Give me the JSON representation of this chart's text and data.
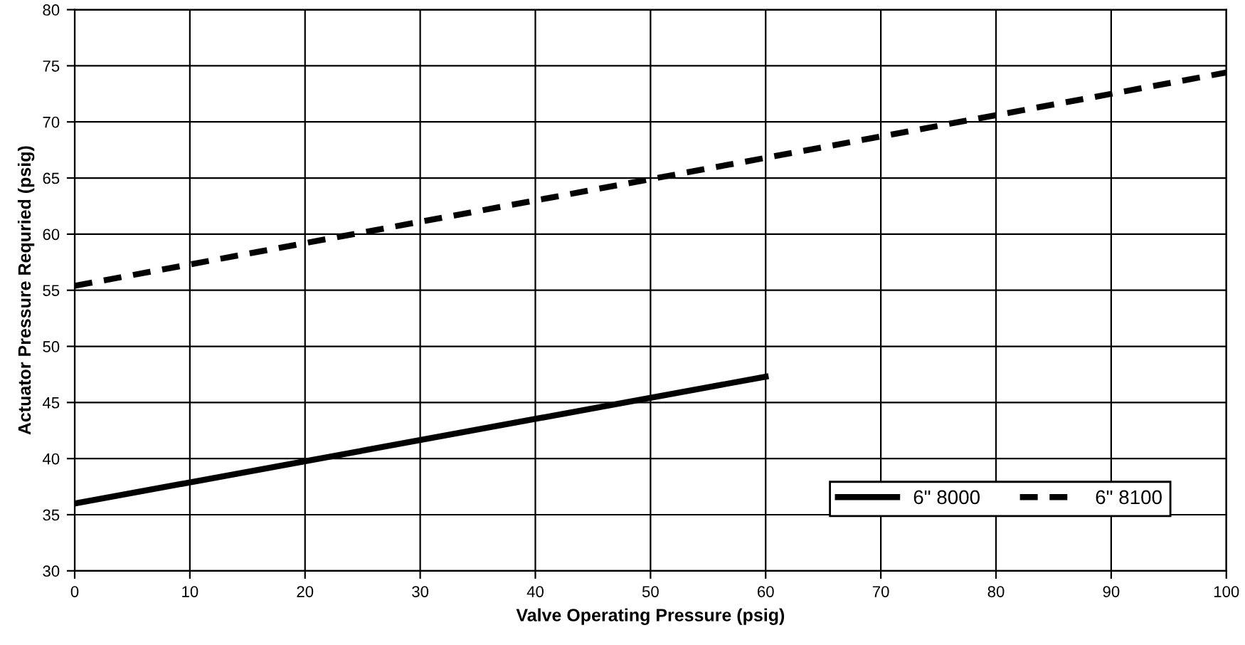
{
  "chart_data": {
    "type": "line",
    "xlabel": "Valve Operating Pressure (psig)",
    "ylabel": "Actuator Pressure Requried (psig)",
    "xlim": [
      0,
      100
    ],
    "xticks": [
      0,
      10,
      20,
      30,
      40,
      50,
      60,
      70,
      80,
      90,
      100
    ],
    "ylim": [
      30,
      80
    ],
    "yticks": [
      30,
      35,
      40,
      45,
      50,
      55,
      60,
      65,
      70,
      75,
      80
    ],
    "grid": true,
    "legend": "bottom right",
    "marker": "none",
    "series": [
      {
        "name": "6\" 8000",
        "color": "#000000",
        "line_style": "solid",
        "x": [
          0,
          60
        ],
        "values": [
          36.0,
          47.3
        ]
      },
      {
        "name": "6\" 8100",
        "color": "#000000",
        "line_style": "dashed",
        "x": [
          0,
          100
        ],
        "values": [
          55.4,
          74.4
        ]
      }
    ]
  }
}
